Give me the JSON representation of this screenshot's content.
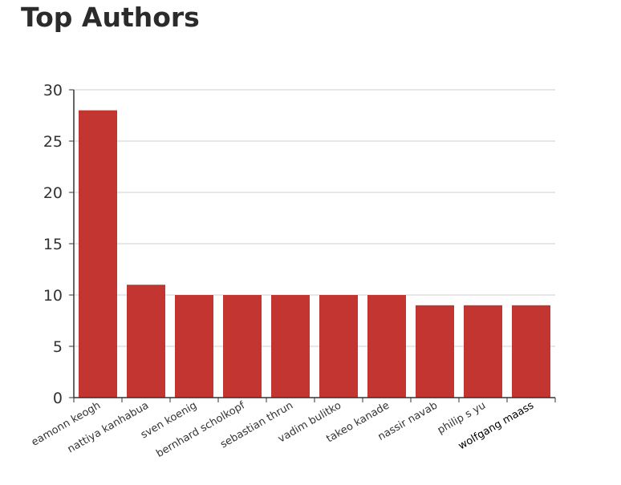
{
  "page": {
    "title": "Top Authors"
  },
  "chart_data": {
    "type": "bar",
    "title": "Top Authors",
    "xlabel": "",
    "ylabel": "",
    "categories": [
      "eamonn keogh",
      "nattiya kanhabua",
      "sven koenig",
      "bernhard scholkopf",
      "sebastian thrun",
      "vadim bulitko",
      "takeo kanade",
      "nassir navab",
      "philip s yu",
      "wolfgang maass"
    ],
    "values": [
      28,
      11,
      10,
      10,
      10,
      10,
      10,
      9,
      9,
      9
    ],
    "ylim": [
      0,
      30
    ],
    "yticks": [
      0,
      5,
      10,
      15,
      20,
      25,
      30
    ],
    "grid": true,
    "bar_color": "#c23531",
    "highlighted_category": "wolfgang maass"
  }
}
